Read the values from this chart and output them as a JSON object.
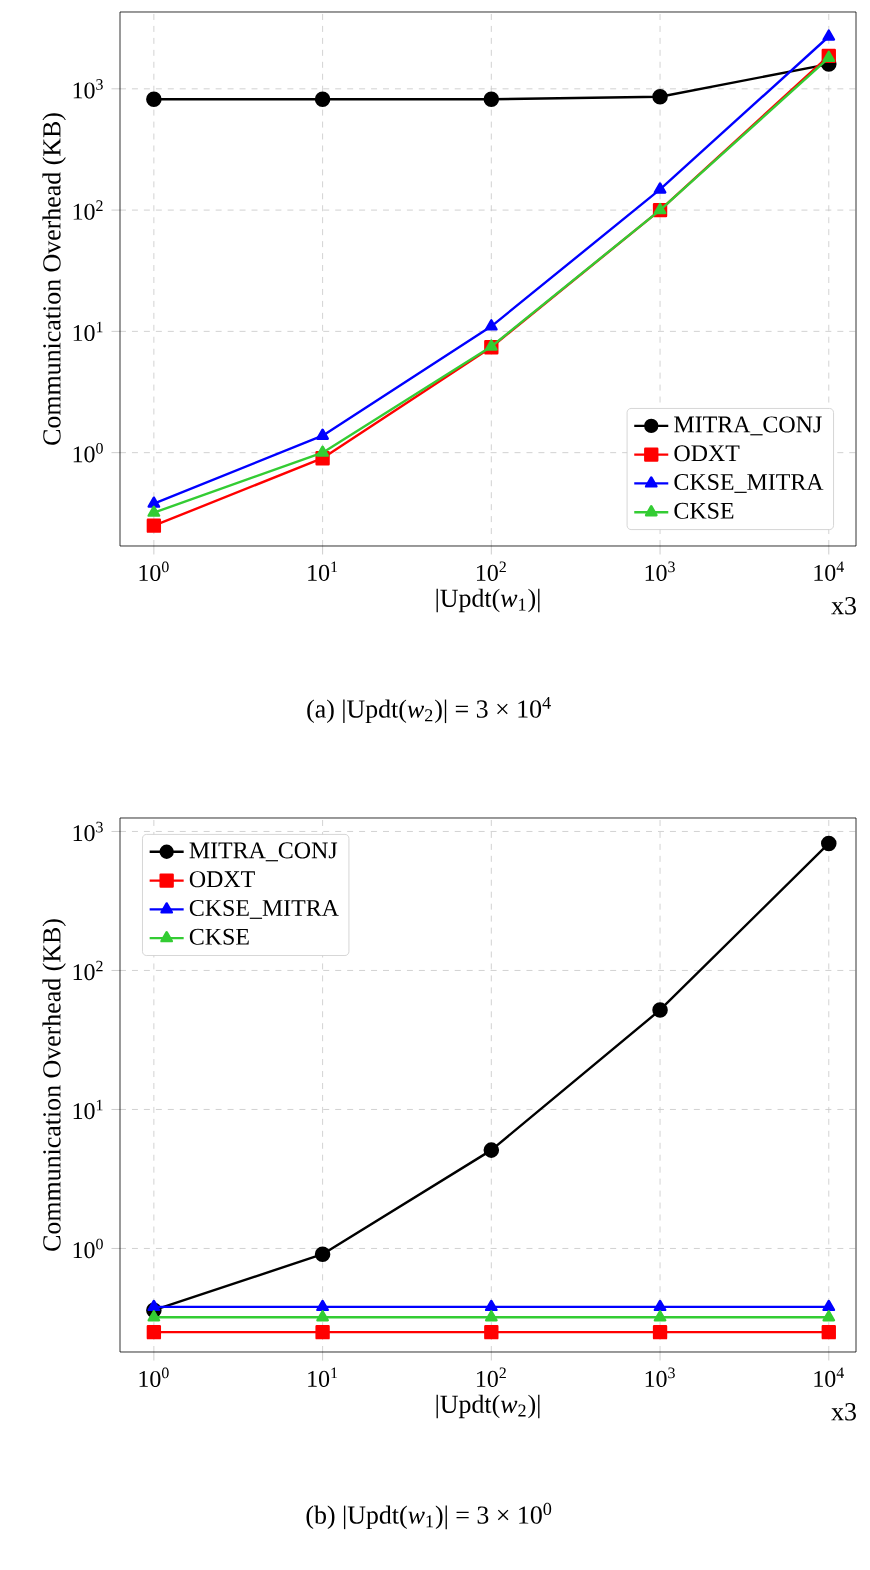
{
  "chart_data": [
    {
      "type": "line",
      "xlabel": "|Updt(*w*$_{1}$)|",
      "ylabel": "Communication Overhead (KB)",
      "log": "xy",
      "grid": true,
      "legend": "bottom right",
      "line_style": "solid",
      "x": [
        1,
        10,
        100,
        1000,
        10000
      ],
      "xlim": [
        0.63,
        14500
      ],
      "ylim": [
        0.17,
        4300
      ],
      "xticks": [
        {
          "value": 1,
          "label": "10$^{0}$"
        },
        {
          "value": 10,
          "label": "10$^{1}$"
        },
        {
          "value": 100,
          "label": "10$^{2}$"
        },
        {
          "value": 1000,
          "label": "10$^{3}$"
        },
        {
          "value": 10000,
          "label": "10$^{4}$"
        }
      ],
      "yticks": [
        {
          "value": 1,
          "label": "10$^{0}$"
        },
        {
          "value": 10,
          "label": "10$^{1}$"
        },
        {
          "value": 100,
          "label": "10$^{2}$"
        },
        {
          "value": 1000,
          "label": "10$^{3}$"
        }
      ],
      "series": [
        {
          "name": "MITRA_CONJ",
          "color": "#000000",
          "marker": "circle",
          "values": [
            820,
            820,
            820,
            860,
            1600
          ]
        },
        {
          "name": "ODXT",
          "color": "#ff0000",
          "marker": "square",
          "values": [
            0.25,
            0.9,
            7.4,
            100,
            1870
          ]
        },
        {
          "name": "CKSE_MITRA",
          "color": "#0000ff",
          "marker": "triangle",
          "values": [
            0.38,
            1.38,
            11,
            148,
            2700
          ]
        },
        {
          "name": "CKSE",
          "color": "#33cc33",
          "marker": "triangle",
          "values": [
            0.32,
            1.0,
            7.5,
            100,
            1800
          ]
        }
      ],
      "annotations": [
        "x3",
        "(a) |Updt(*w*$_{2}$)| = 3 × 10$^{4}$"
      ]
    },
    {
      "type": "line",
      "xlabel": "|Updt(*w*$_{2}$)|",
      "ylabel": "Communication Overhead (KB)",
      "log": "xy",
      "grid": true,
      "legend": "top left",
      "line_style": "solid",
      "x": [
        1,
        10,
        100,
        1000,
        10000
      ],
      "xlim": [
        0.63,
        14500
      ],
      "ylim": [
        0.18,
        1250
      ],
      "xticks": [
        {
          "value": 1,
          "label": "10$^{0}$"
        },
        {
          "value": 10,
          "label": "10$^{1}$"
        },
        {
          "value": 100,
          "label": "10$^{2}$"
        },
        {
          "value": 1000,
          "label": "10$^{3}$"
        },
        {
          "value": 10000,
          "label": "10$^{4}$"
        }
      ],
      "yticks": [
        {
          "value": 1,
          "label": "10$^{0}$"
        },
        {
          "value": 10,
          "label": "10$^{1}$"
        },
        {
          "value": 100,
          "label": "10$^{2}$"
        },
        {
          "value": 1000,
          "label": "10$^{3}$"
        }
      ],
      "series": [
        {
          "name": "MITRA_CONJ",
          "color": "#000000",
          "marker": "circle",
          "values": [
            0.36,
            0.91,
            5.1,
            52,
            820
          ]
        },
        {
          "name": "ODXT",
          "color": "#ff0000",
          "marker": "square",
          "values": [
            0.25,
            0.25,
            0.25,
            0.25,
            0.25
          ]
        },
        {
          "name": "CKSE_MITRA",
          "color": "#0000ff",
          "marker": "triangle",
          "values": [
            0.38,
            0.38,
            0.38,
            0.38,
            0.38
          ]
        },
        {
          "name": "CKSE",
          "color": "#33cc33",
          "marker": "triangle",
          "values": [
            0.32,
            0.32,
            0.32,
            0.32,
            0.32
          ]
        }
      ],
      "annotations": [
        "x3",
        "(b) |Updt(*w*$_{1}$)| = 3 × 10$^{0}$"
      ]
    }
  ]
}
